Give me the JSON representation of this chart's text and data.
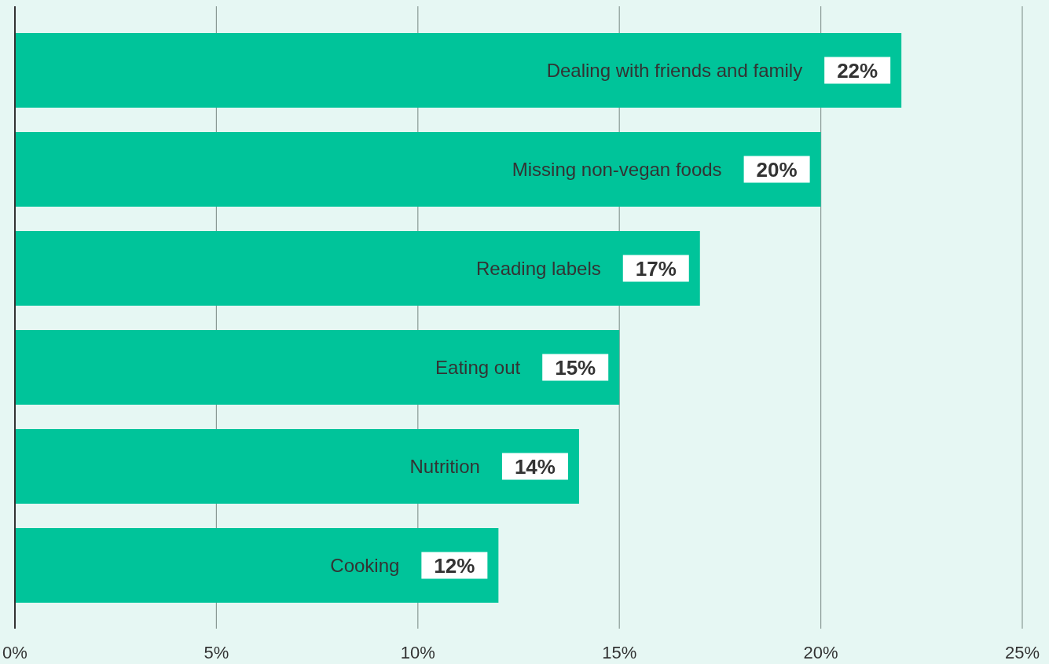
{
  "chart_data": {
    "type": "bar",
    "orientation": "horizontal",
    "categories": [
      "Dealing with friends and family",
      "Missing non-vegan foods",
      "Reading labels",
      "Eating out",
      "Nutrition",
      "Cooking"
    ],
    "values": [
      22,
      20,
      17,
      15,
      14,
      12
    ],
    "color": "#00c49a",
    "xlim": [
      0,
      25
    ],
    "xticks": [
      {
        "value": 0,
        "label": "0%"
      },
      {
        "value": 5,
        "label": "5%"
      },
      {
        "value": 10,
        "label": "10%"
      },
      {
        "value": 15,
        "label": "15%"
      },
      {
        "value": 20,
        "label": "20%"
      },
      {
        "value": 25,
        "label": "25%"
      }
    ],
    "grid": "x",
    "data_labels": true,
    "value_labels": [
      "22%",
      "20%",
      "17%",
      "15%",
      "14%",
      "12%"
    ]
  }
}
